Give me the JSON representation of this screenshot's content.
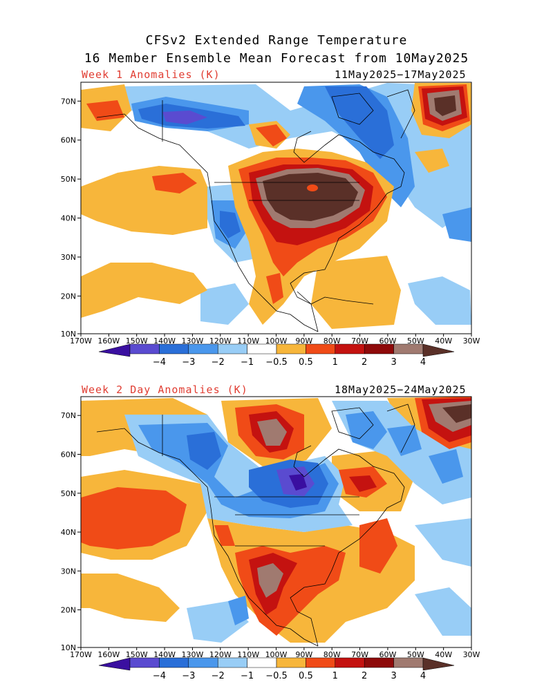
{
  "title_line1": "CFSv2 Extended Range Temperature",
  "title_line2": "16 Member Ensemble Mean Forecast from 10May2025",
  "panels": [
    {
      "label": "Week 1 Anomalies (K)",
      "dates": "11May2025−17May2025"
    },
    {
      "label": "Week 2 Day Anomalies (K)",
      "dates": "18May2025−24May2025"
    }
  ],
  "lat_labels": [
    "70N",
    "60N",
    "50N",
    "40N",
    "30N",
    "20N",
    "10N"
  ],
  "lon_labels": [
    "170W",
    "160W",
    "150W",
    "140W",
    "130W",
    "120W",
    "110W",
    "100W",
    "90W",
    "80W",
    "70W",
    "60W",
    "50W",
    "40W",
    "30W"
  ],
  "colorbar": {
    "labels": [
      "−4",
      "−3",
      "−2",
      "−1",
      "−0.5",
      "0.5",
      "1",
      "2",
      "3",
      "4"
    ],
    "colors": [
      "#3a0fa0",
      "#5a4bd0",
      "#2a6fd8",
      "#4a97ec",
      "#98cdf6",
      "#ffffff",
      "#f7b63b",
      "#f04b17",
      "#c41210",
      "#8e0a0a",
      "#a07a70",
      "#5a3028"
    ]
  }
}
